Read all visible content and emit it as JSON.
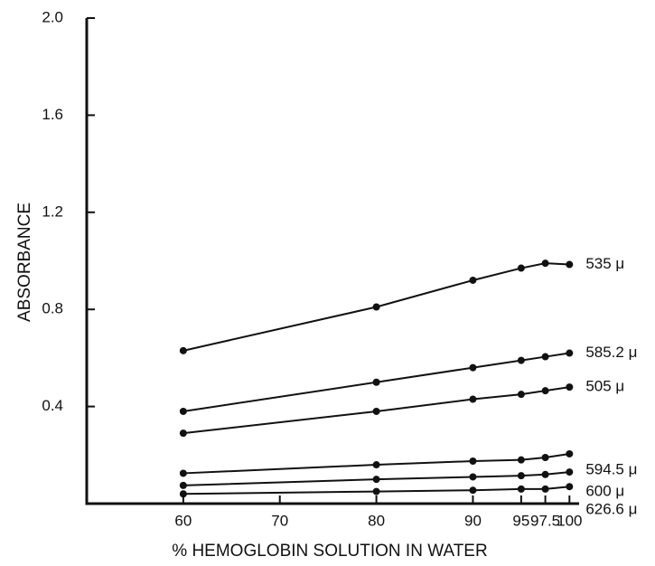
{
  "chart_data": {
    "type": "line",
    "xlabel": "% HEMOGLOBIN SOLUTION IN WATER",
    "ylabel": "ABSORBANCE",
    "x": [
      60,
      80,
      90,
      95,
      97.5,
      100
    ],
    "xlim": [
      50,
      101
    ],
    "xticks": [
      60,
      70,
      80,
      90,
      95,
      97.5,
      100
    ],
    "ylim": [
      0,
      2
    ],
    "yticks": [
      0.4,
      0.8,
      1.2,
      1.6,
      {
        "value": 2,
        "label": "2.0"
      }
    ],
    "series": [
      {
        "name": "535 μ",
        "color": "#111111",
        "values": [
          0.63,
          0.81,
          0.92,
          0.97,
          0.99,
          0.985
        ]
      },
      {
        "name": "585.2 μ",
        "color": "#111111",
        "values": [
          0.38,
          0.5,
          0.56,
          0.59,
          0.605,
          0.62
        ]
      },
      {
        "name": "505 μ",
        "color": "#111111",
        "values": [
          0.29,
          0.38,
          0.43,
          0.45,
          0.465,
          0.48
        ]
      },
      {
        "name": "594.5 μ",
        "color": "#111111",
        "values": [
          0.125,
          0.16,
          0.175,
          0.18,
          0.19,
          0.205
        ]
      },
      {
        "name": "600 μ",
        "color": "#111111",
        "values": [
          0.075,
          0.1,
          0.11,
          0.115,
          0.12,
          0.13
        ]
      },
      {
        "name": "626.6 μ",
        "color": "#111111",
        "values": [
          0.04,
          0.05,
          0.055,
          0.06,
          0.06,
          0.07
        ]
      }
    ]
  }
}
